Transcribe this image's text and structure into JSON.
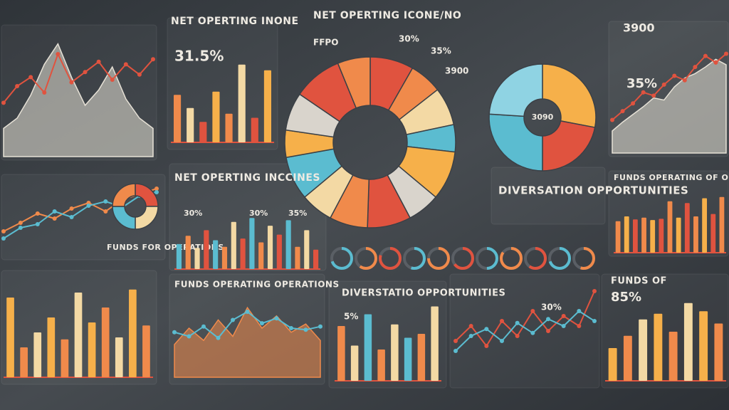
{
  "chart_data": [
    {
      "type": "area",
      "values": [
        22,
        30,
        48,
        72,
        88,
        62,
        40,
        52,
        70,
        45,
        30,
        22
      ],
      "line_values": [
        42,
        55,
        62,
        50,
        80,
        58,
        66,
        74,
        60,
        72,
        64,
        76
      ],
      "color": "#e6e1d6",
      "line_color": "#e0533f",
      "ylim": [
        0,
        100
      ]
    },
    {
      "type": "bar",
      "title": "NET OPERTING INONE",
      "annotations": [
        "31.5%"
      ],
      "values": [
        58,
        42,
        25,
        62,
        35,
        95,
        30,
        88
      ],
      "colors": [
        "#f08a4b",
        "#f3d9a4",
        "#e0533f",
        "#f6b04a"
      ],
      "ylim": [
        0,
        100
      ]
    },
    {
      "type": "donut",
      "title": "NET OPERTING ICONE/NO",
      "annotations": [
        "FFPO",
        "30%",
        "35%",
        "3900"
      ],
      "values": [
        8,
        6,
        7,
        5,
        9,
        6,
        8,
        7,
        6,
        8,
        5,
        7,
        9,
        6
      ],
      "colors": [
        "#e0533f",
        "#f08a4b",
        "#f3d9a4",
        "#5bbcd0",
        "#f6b04a",
        "#d9d4cc"
      ]
    },
    {
      "type": "donut",
      "title": "DIVERSATION OPPORTUNITIES",
      "annotations": [
        "3090"
      ],
      "values": [
        28,
        22,
        26,
        24
      ],
      "colors": [
        "#f6b04a",
        "#e0533f",
        "#5bbcd0",
        "#8fd3e3"
      ]
    },
    {
      "type": "area",
      "annotations": [
        "3900",
        "35%"
      ],
      "values": [
        20,
        28,
        35,
        42,
        50,
        48,
        60,
        68,
        72,
        78,
        85,
        80
      ],
      "line_values": [
        30,
        38,
        45,
        55,
        52,
        62,
        70,
        66,
        78,
        88,
        82,
        90
      ],
      "color": "#e6e1d6",
      "line_color": "#e0533f",
      "ylim": [
        0,
        100
      ]
    },
    {
      "type": "line",
      "values": [
        30,
        42,
        55,
        48,
        62,
        70,
        58,
        75,
        82,
        90
      ],
      "line_values": [
        20,
        35,
        40,
        58,
        50,
        66,
        72,
        64,
        80,
        85
      ],
      "color": "#f08a4b",
      "line_color": "#5bbcd0",
      "ylim": [
        0,
        100
      ]
    },
    {
      "type": "donut",
      "title": "FUNDS FOR OPERATIONS",
      "values": [
        25,
        25,
        25,
        25
      ],
      "colors": [
        "#e0533f",
        "#f3d9a4",
        "#5bbcd0",
        "#f08a4b"
      ]
    },
    {
      "type": "bar",
      "title": "NET OPERTING INCCINES",
      "annotations": [
        "30%",
        "30%",
        "35%"
      ],
      "values": [
        45,
        60,
        38,
        70,
        52,
        40,
        85,
        55,
        92,
        48,
        78,
        62,
        88,
        40,
        70,
        35
      ],
      "colors": [
        "#5bbcd0",
        "#f08a4b",
        "#f3d9a4",
        "#e0533f"
      ],
      "ylim": [
        0,
        100
      ]
    },
    {
      "type": "gauges",
      "values": [
        70,
        60,
        80,
        55,
        75,
        65,
        50,
        85,
        60,
        70,
        55
      ],
      "colors": [
        "#5bbcd0",
        "#f08a4b",
        "#e0533f"
      ]
    },
    {
      "type": "bar",
      "title": "FUNDS OPERATING OF OPERATIONS",
      "values": [
        52,
        60,
        55,
        58,
        54,
        56,
        85,
        58,
        82,
        60,
        90,
        64,
        92
      ],
      "colors": [
        "#f08a4b",
        "#f6b04a",
        "#e0533f"
      ],
      "ylim": [
        0,
        100
      ]
    },
    {
      "type": "bar",
      "values": [
        80,
        30,
        45,
        60,
        38,
        85,
        55,
        70,
        40,
        88,
        52
      ],
      "colors": [
        "#f6b04a",
        "#f08a4b",
        "#f3d9a4"
      ],
      "ylim": [
        0,
        100
      ]
    },
    {
      "type": "area",
      "title": "FUNDS OPERATING OPERATIONS",
      "values": [
        40,
        60,
        45,
        70,
        50,
        85,
        60,
        75,
        55,
        65,
        45
      ],
      "line_values": [
        55,
        50,
        62,
        48,
        70,
        80,
        66,
        72,
        60,
        58,
        62
      ],
      "color": "#f08a4b",
      "line_color": "#5bbcd0",
      "ylim": [
        0,
        100
      ]
    },
    {
      "type": "bar",
      "title": "DIVERSTATIO OPPORTUNITIES",
      "annotations": [
        "5%"
      ],
      "values": [
        70,
        45,
        85,
        40,
        72,
        55,
        60,
        95
      ],
      "colors": [
        "#f08a4b",
        "#f3d9a4",
        "#5bbcd0"
      ],
      "ylim": [
        0,
        100
      ]
    },
    {
      "type": "line",
      "annotations": [
        "30%"
      ],
      "values": [
        40,
        55,
        35,
        60,
        45,
        70,
        50,
        65,
        55,
        90
      ],
      "line_values": [
        30,
        45,
        52,
        40,
        58,
        48,
        62,
        55,
        70,
        60
      ],
      "color": "#e0533f",
      "line_color": "#5bbcd0",
      "ylim": [
        0,
        100
      ]
    },
    {
      "type": "bar",
      "title": "FUNDS OF",
      "annotations": [
        "85%"
      ],
      "values": [
        40,
        55,
        75,
        82,
        60,
        95,
        85,
        70
      ],
      "colors": [
        "#f6b04a",
        "#f08a4b",
        "#f3d9a4"
      ],
      "ylim": [
        0,
        100
      ]
    }
  ]
}
